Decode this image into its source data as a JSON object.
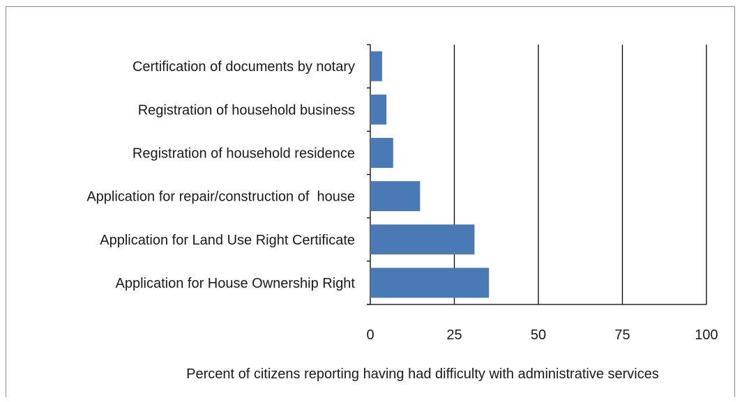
{
  "chart_data": {
    "type": "bar",
    "orientation": "horizontal",
    "categories": [
      "Certification of documents by notary",
      "Registration of household business",
      "Registration of household residence",
      "Application for repair/construction of  house",
      "Application for Land Use Right Certificate",
      "Application for House Ownership Right"
    ],
    "values": [
      3.5,
      4.8,
      6.8,
      14.8,
      31,
      35.3
    ],
    "xlabel": "Percent of citizens reporting having had difficulty with administrative services",
    "ylabel": "",
    "title": "",
    "xlim": [
      0,
      100
    ],
    "xticks": [
      "0",
      "25",
      "50",
      "75",
      "100"
    ],
    "grid": "vertical",
    "bar_color": "#4a7ab5"
  }
}
